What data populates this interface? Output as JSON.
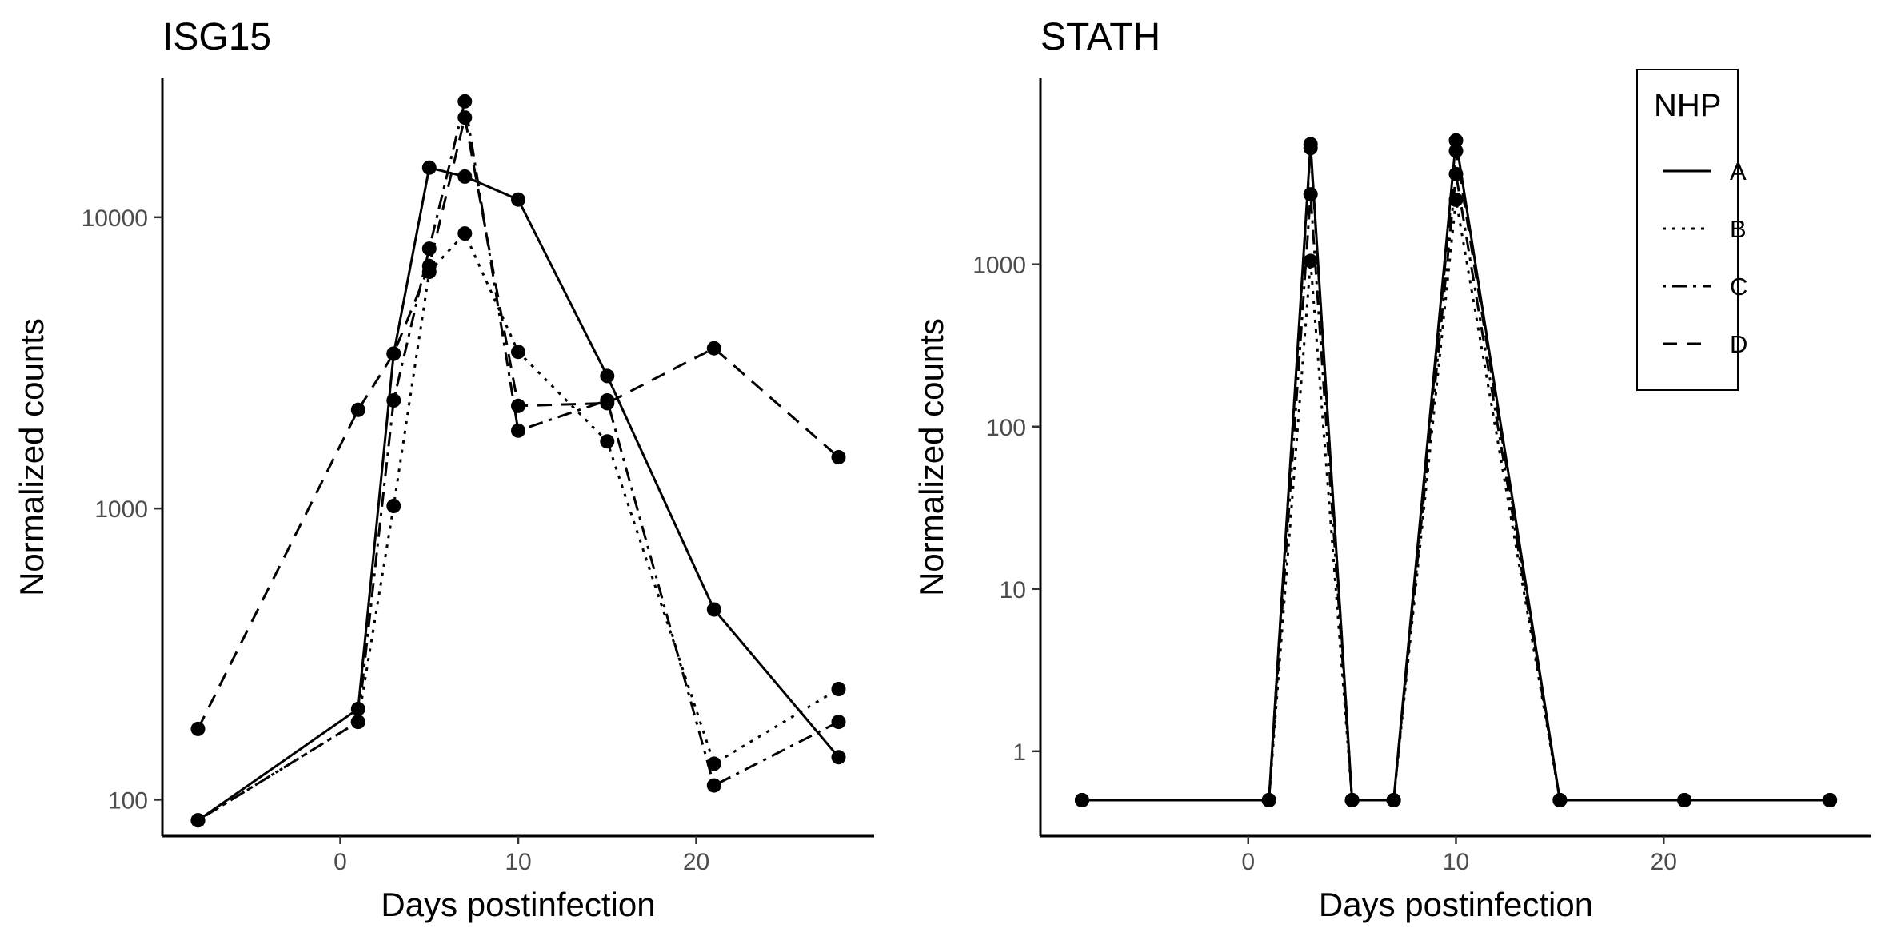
{
  "chart_data": [
    {
      "type": "line",
      "title": "ISG15",
      "xlabel": "Days postinfection",
      "ylabel": "Normalized counts",
      "yscale": "log",
      "xlim": [
        -10,
        30
      ],
      "ylim": [
        75,
        30000
      ],
      "xticks": [
        0,
        10,
        20
      ],
      "yticks": [
        100,
        1000,
        10000
      ],
      "grid": false,
      "series": [
        {
          "name": "A",
          "x": [
            -8,
            1,
            3,
            5,
            7,
            10,
            15,
            21,
            28
          ],
          "y": [
            85,
            205,
            3400,
            14800,
            13800,
            11500,
            2850,
            450,
            140
          ]
        },
        {
          "name": "B",
          "x": [
            -8,
            1,
            3,
            5,
            7,
            10,
            15,
            21,
            28
          ],
          "y": [
            85,
            185,
            1020,
            6500,
            8800,
            3450,
            1700,
            133,
            240
          ]
        },
        {
          "name": "C",
          "x": [
            -8,
            1,
            3,
            5,
            7,
            10,
            15,
            21,
            28
          ],
          "y": [
            85,
            185,
            2350,
            7800,
            25000,
            1850,
            2350,
            112,
            185
          ]
        },
        {
          "name": "D",
          "x": [
            -8,
            1,
            3,
            5,
            7,
            10,
            15,
            21,
            28
          ],
          "y": [
            175,
            2180,
            3400,
            6800,
            22000,
            2250,
            2300,
            3550,
            1500
          ]
        }
      ]
    },
    {
      "type": "line",
      "title": "STATH",
      "xlabel": "Days postinfection",
      "ylabel": "Normalized counts",
      "yscale": "log",
      "xlim": [
        -10,
        30
      ],
      "ylim": [
        0.3,
        14000
      ],
      "xticks": [
        0,
        10,
        20
      ],
      "yticks": [
        1,
        10,
        100,
        1000
      ],
      "grid": false,
      "legend": {
        "title": "NHP",
        "position": "top-right",
        "entries": [
          "A",
          "B",
          "C",
          "D"
        ]
      },
      "series": [
        {
          "name": "A",
          "x": [
            -8,
            1,
            3,
            5,
            7,
            10,
            15,
            21,
            28
          ],
          "y": [
            0.5,
            0.5,
            5500,
            0.5,
            0.5,
            5800,
            0.5,
            0.5,
            0.5
          ]
        },
        {
          "name": "B",
          "x": [
            -8,
            1,
            3,
            5,
            7,
            10,
            15,
            21,
            28
          ],
          "y": [
            0.5,
            0.5,
            1050,
            0.5,
            0.5,
            2500,
            0.5,
            0.5,
            0.5
          ]
        },
        {
          "name": "C",
          "x": [
            -8,
            1,
            3,
            5,
            7,
            10,
            15,
            21,
            28
          ],
          "y": [
            0.5,
            0.5,
            2700,
            0.5,
            0.5,
            3600,
            0.5,
            0.5,
            0.5
          ]
        },
        {
          "name": "D",
          "x": [
            -8,
            1,
            3,
            5,
            7,
            10,
            15,
            21,
            28
          ],
          "y": [
            0.5,
            0.5,
            5200,
            0.5,
            0.5,
            5000,
            0.5,
            0.5,
            0.5
          ]
        }
      ]
    }
  ],
  "styles": {
    "line_color": "#000000",
    "tick_label_color": "#4d4d4d",
    "dash": {
      "A": "solid",
      "B": "dotted",
      "C": "dotdash",
      "D": "dashed"
    }
  }
}
